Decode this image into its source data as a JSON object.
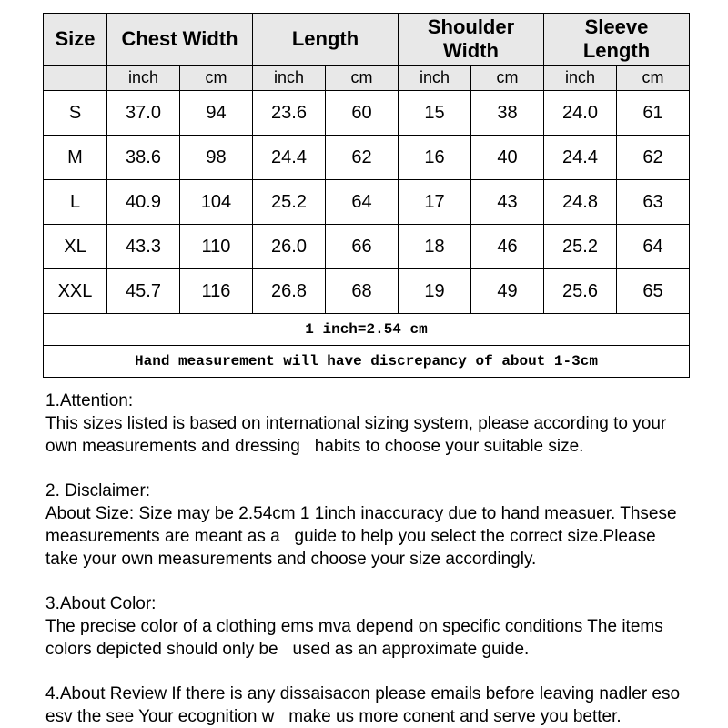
{
  "colors": {
    "page_bg": "#ffffff",
    "header_bg": "#e8e8e8",
    "border": "#000000",
    "text": "#000000"
  },
  "sizeTable": {
    "header": {
      "size": "Size",
      "chest": "Chest Width",
      "length": "Length",
      "shoulder": "Shoulder Width",
      "sleeve": "Sleeve Length"
    },
    "unitRow": [
      "",
      "inch",
      "cm",
      "inch",
      "cm",
      "inch",
      "cm",
      "inch",
      "cm"
    ],
    "rows": [
      [
        "S",
        "37.0",
        "94",
        "23.6",
        "60",
        "15",
        "38",
        "24.0",
        "61"
      ],
      [
        "M",
        "38.6",
        "98",
        "24.4",
        "62",
        "16",
        "40",
        "24.4",
        "62"
      ],
      [
        "L",
        "40.9",
        "104",
        "25.2",
        "64",
        "17",
        "43",
        "24.8",
        "63"
      ],
      [
        "XL",
        "43.3",
        "110",
        "26.0",
        "66",
        "18",
        "46",
        "25.2",
        "64"
      ],
      [
        "XXL",
        "45.7",
        "116",
        "26.8",
        "68",
        "19",
        "49",
        "25.6",
        "65"
      ]
    ],
    "footnotes": [
      "1 inch=2.54 cm",
      "Hand measurement will have discrepancy of about 1-3cm"
    ]
  },
  "notes": [
    {
      "text": "1.Attention:\nThis sizes listed is based on international sizing system, please according to your\nown measurements and dressing   habits to choose your suitable size."
    },
    {
      "text": "2. Disclaimer:\nAbout Size: Size may be 2.54cm 1 1inch inaccuracy due to hand measuer. Thsese\nmeasurements are meant as a   guide to help you select the correct size.Please\ntake your own measurements and choose your size accordingly."
    },
    {
      "text": "3.About Color:\nThe precise color of a clothing ems mva depend on specific conditions The items\ncolors depicted should only be   used as an approximate guide."
    },
    {
      "text": "4.About Review If there is any dissaisacon please emails before leaving nadler eso\nesv the see Your ecognition w   make us more conent and serve you better."
    }
  ]
}
